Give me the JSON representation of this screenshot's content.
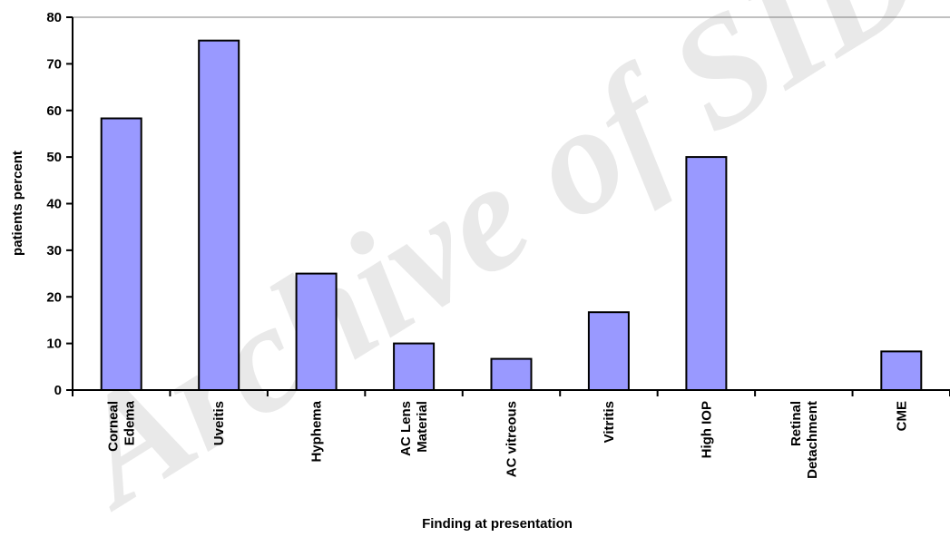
{
  "watermark": "Archive of SID",
  "chart_data": {
    "type": "bar",
    "title": "",
    "xlabel": "Finding  at presentation",
    "ylabel": "patients percent",
    "ylim": [
      0,
      80
    ],
    "yticks": [
      0,
      10,
      20,
      30,
      40,
      50,
      60,
      70,
      80
    ],
    "grid": false,
    "legend": "none",
    "bar_color": "#9999ff",
    "categories": [
      [
        "Corneal",
        "Edema"
      ],
      [
        "Uveitis"
      ],
      [
        "Hyphema"
      ],
      [
        "AC Lens",
        "Material"
      ],
      [
        "AC vitreous"
      ],
      [
        "Vitritis"
      ],
      [
        "High IOP"
      ],
      [
        "Retinal",
        "Detachment"
      ],
      [
        "CME"
      ]
    ],
    "values": [
      58.3,
      75,
      25,
      10,
      6.7,
      16.7,
      50,
      0,
      8.3
    ]
  }
}
